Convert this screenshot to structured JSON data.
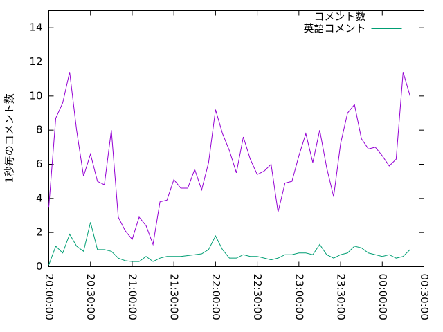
{
  "chart_data": {
    "type": "line",
    "ylabel": "1秒毎のコメント数",
    "x": [
      "20:00:00",
      "20:05:00",
      "20:10:00",
      "20:15:00",
      "20:20:00",
      "20:25:00",
      "20:30:00",
      "20:35:00",
      "20:40:00",
      "20:45:00",
      "20:50:00",
      "20:55:00",
      "21:00:00",
      "21:05:00",
      "21:10:00",
      "21:15:00",
      "21:20:00",
      "21:25:00",
      "21:30:00",
      "21:35:00",
      "21:40:00",
      "21:45:00",
      "21:50:00",
      "21:55:00",
      "22:00:00",
      "22:05:00",
      "22:10:00",
      "22:15:00",
      "22:20:00",
      "22:25:00",
      "22:30:00",
      "22:35:00",
      "22:40:00",
      "22:45:00",
      "22:50:00",
      "22:55:00",
      "23:00:00",
      "23:05:00",
      "23:10:00",
      "23:15:00",
      "23:20:00",
      "23:25:00",
      "23:30:00",
      "23:35:00",
      "23:40:00",
      "23:45:00",
      "23:50:00",
      "23:55:00",
      "00:00:00",
      "00:05:00",
      "00:10:00",
      "00:15:00",
      "00:20:00"
    ],
    "series": [
      {
        "name": "コメント数",
        "color": "#9400d3",
        "values": [
          3.5,
          8.7,
          9.6,
          11.4,
          8.0,
          5.3,
          6.6,
          5.0,
          4.8,
          8.0,
          2.9,
          2.1,
          1.6,
          2.9,
          2.4,
          1.3,
          3.8,
          3.9,
          5.1,
          4.6,
          4.6,
          5.7,
          4.5,
          6.1,
          9.2,
          7.8,
          6.8,
          5.5,
          7.6,
          6.3,
          5.4,
          5.6,
          6.0,
          3.2,
          4.9,
          5.0,
          6.5,
          7.8,
          6.1,
          8.0,
          5.8,
          4.1,
          7.2,
          9.0,
          9.5,
          7.5,
          6.9,
          7.0,
          6.5,
          5.9,
          6.3,
          11.4,
          10.0
        ]
      },
      {
        "name": "英語コメント",
        "color": "#009e73",
        "values": [
          0.1,
          1.2,
          0.8,
          1.9,
          1.2,
          0.9,
          2.6,
          1.0,
          1.0,
          0.9,
          0.5,
          0.35,
          0.3,
          0.3,
          0.6,
          0.3,
          0.5,
          0.6,
          0.6,
          0.6,
          0.65,
          0.7,
          0.75,
          1.0,
          1.8,
          1.0,
          0.5,
          0.5,
          0.7,
          0.6,
          0.6,
          0.5,
          0.4,
          0.5,
          0.7,
          0.7,
          0.8,
          0.8,
          0.7,
          1.3,
          0.7,
          0.5,
          0.7,
          0.8,
          1.2,
          1.1,
          0.8,
          0.7,
          0.6,
          0.7,
          0.5,
          0.6,
          1.0
        ]
      }
    ],
    "xlim": [
      "20:00:00",
      "00:30:00"
    ],
    "xticks": [
      "20:00:00",
      "20:30:00",
      "21:00:00",
      "21:30:00",
      "22:00:00",
      "22:30:00",
      "23:00:00",
      "23:30:00",
      "00:00:00",
      "00:30:00"
    ],
    "ylim": [
      0,
      15
    ],
    "yticks": [
      0,
      2,
      4,
      6,
      8,
      10,
      12,
      14
    ],
    "legend": "top right"
  }
}
